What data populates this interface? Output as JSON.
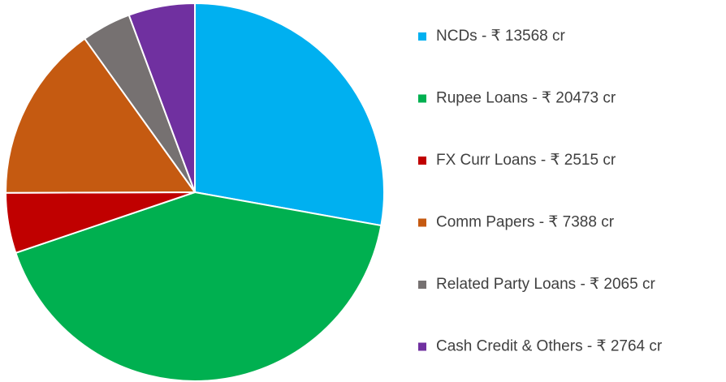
{
  "chart_data": {
    "type": "pie",
    "categories": [
      "NCDs - ₹ 13568 cr",
      "Rupee Loans - ₹ 20473 cr",
      "FX Curr Loans - ₹ 2515 cr",
      "Comm Papers - ₹ 7388 cr",
      "Related Party Loans - ₹ 2065 cr",
      "Cash Credit & Others - ₹ 2764 cr"
    ],
    "values": [
      13568,
      20473,
      2515,
      7388,
      2065,
      2764
    ],
    "colors": [
      "#00b0f0",
      "#00b050",
      "#c00000",
      "#c55a11",
      "#767171",
      "#7030a0"
    ],
    "legend": "right"
  }
}
